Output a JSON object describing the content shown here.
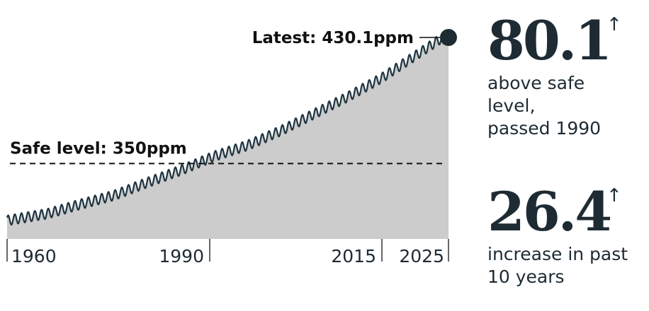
{
  "chart_data": {
    "type": "area",
    "x_ticks": [
      1960,
      1990,
      2015,
      2025
    ],
    "xlim": [
      1959,
      2025
    ],
    "ylim": [
      305,
      440
    ],
    "colors": {
      "fill": "#cccccc",
      "line": "#1e3440",
      "accent": "#1e2b33"
    },
    "trend": {
      "x": [
        1959,
        1965,
        1970,
        1975,
        1980,
        1985,
        1990,
        1995,
        2000,
        2005,
        2010,
        2015,
        2020,
        2025
      ],
      "y": [
        316,
        320,
        325.7,
        331,
        338.7,
        346,
        354.4,
        360.9,
        369.7,
        379.8,
        389.9,
        401,
        414.2,
        427.5
      ]
    },
    "seasonal_amplitude_ppm": 3,
    "safe_level": {
      "value": 350,
      "label": "Safe level: 350ppm"
    },
    "latest": {
      "x": 2025,
      "value": 430.1,
      "label": "Latest: 430.1ppm"
    }
  },
  "stats": [
    {
      "value": "80.1",
      "arrow": "↑",
      "caption_lines": [
        "above safe",
        "level,",
        "passed 1990"
      ]
    },
    {
      "value": "26.4",
      "arrow": "↑",
      "caption_lines": [
        "increase in past",
        "10 years"
      ]
    }
  ]
}
